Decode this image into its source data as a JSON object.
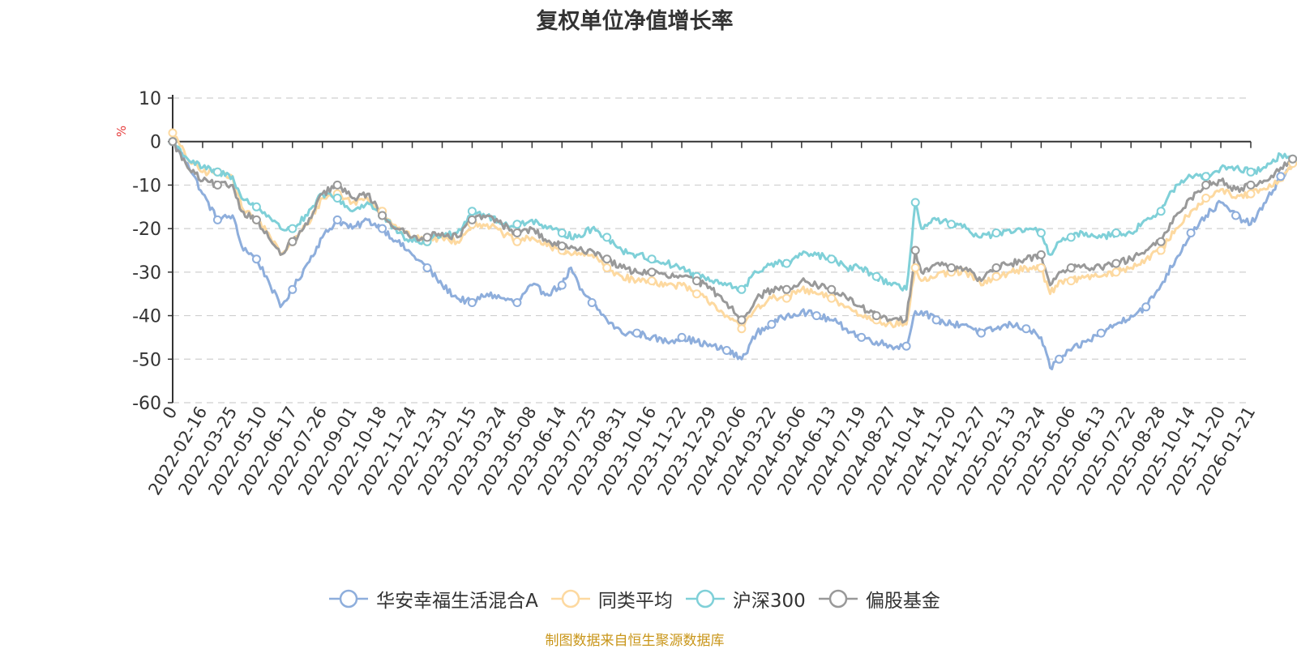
{
  "chart_data": {
    "type": "line",
    "title": "复权单位净值增长率",
    "ylabel": "%",
    "ylim": [
      -60,
      10
    ],
    "yticks": [
      "10",
      "0",
      "-10",
      "-20",
      "-30",
      "-40",
      "-50",
      "-60"
    ],
    "categories": [
      "0",
      "2022-02-16",
      "2022-03-25",
      "2022-05-10",
      "2022-06-17",
      "2022-07-26",
      "2022-09-01",
      "2022-10-18",
      "2022-11-24",
      "2022-12-31",
      "2023-02-15",
      "2023-03-24",
      "2023-05-08",
      "2023-06-14",
      "2023-07-25",
      "2023-08-31",
      "2023-10-16",
      "2023-11-22",
      "2023-12-29",
      "2024-02-06",
      "2024-03-22",
      "2024-05-06",
      "2024-06-13",
      "2024-07-19",
      "2024-08-27",
      "2024-10-14",
      "2024-11-20",
      "2024-12-27",
      "2025-02-13",
      "2025-03-24",
      "2025-05-06",
      "2025-06-13",
      "2025-07-22",
      "2025-08-28",
      "2025-10-14",
      "2025-11-20",
      "2026-01-21"
    ],
    "grid": "dashed horizontal",
    "legend_position": "bottom",
    "series": [
      {
        "name": "华安幸福生活混合A",
        "color": "#8eaedc",
        "anchors": [
          [
            0,
            0
          ],
          [
            0.5,
            -5
          ],
          [
            1,
            -12
          ],
          [
            1.5,
            -18
          ],
          [
            2,
            -17
          ],
          [
            2.3,
            -24
          ],
          [
            2.8,
            -27
          ],
          [
            3.2,
            -32
          ],
          [
            3.6,
            -38
          ],
          [
            4,
            -34
          ],
          [
            4.5,
            -28
          ],
          [
            5,
            -22
          ],
          [
            5.5,
            -18
          ],
          [
            6,
            -20
          ],
          [
            6.5,
            -18
          ],
          [
            7,
            -20
          ],
          [
            7.5,
            -23
          ],
          [
            8,
            -26
          ],
          [
            8.5,
            -29
          ],
          [
            9,
            -33
          ],
          [
            9.5,
            -36
          ],
          [
            10,
            -37
          ],
          [
            10.5,
            -35
          ],
          [
            11,
            -36
          ],
          [
            11.5,
            -37
          ],
          [
            12,
            -33
          ],
          [
            12.5,
            -35
          ],
          [
            13,
            -33
          ],
          [
            13.3,
            -29
          ],
          [
            13.6,
            -34
          ],
          [
            14,
            -37
          ],
          [
            14.5,
            -41
          ],
          [
            15,
            -44
          ],
          [
            15.5,
            -44
          ],
          [
            16,
            -45
          ],
          [
            16.5,
            -46
          ],
          [
            17,
            -45
          ],
          [
            17.5,
            -46
          ],
          [
            18,
            -47
          ],
          [
            18.5,
            -48
          ],
          [
            19,
            -50
          ],
          [
            19.5,
            -44
          ],
          [
            20,
            -42
          ],
          [
            20.5,
            -40
          ],
          [
            21,
            -39
          ],
          [
            21.5,
            -40
          ],
          [
            22,
            -41
          ],
          [
            22.5,
            -43
          ],
          [
            23,
            -45
          ],
          [
            23.5,
            -46
          ],
          [
            24,
            -47
          ],
          [
            24.5,
            -47
          ],
          [
            24.8,
            -39
          ],
          [
            25,
            -39
          ],
          [
            25.5,
            -41
          ],
          [
            26,
            -42
          ],
          [
            26.5,
            -42
          ],
          [
            27,
            -44
          ],
          [
            27.5,
            -43
          ],
          [
            28,
            -42
          ],
          [
            28.5,
            -43
          ],
          [
            29,
            -45
          ],
          [
            29.3,
            -52
          ],
          [
            29.6,
            -50
          ],
          [
            30,
            -48
          ],
          [
            30.5,
            -46
          ],
          [
            31,
            -44
          ],
          [
            31.5,
            -42
          ],
          [
            32,
            -40
          ],
          [
            32.5,
            -38
          ],
          [
            33,
            -33
          ],
          [
            33.5,
            -27
          ],
          [
            34,
            -21
          ],
          [
            34.5,
            -17
          ],
          [
            35,
            -14
          ],
          [
            35.5,
            -17
          ],
          [
            36,
            -19
          ],
          [
            36.5,
            -14
          ],
          [
            37,
            -8
          ],
          [
            37.4,
            -6
          ]
        ]
      },
      {
        "name": "同类平均",
        "color": "#fdd9a0",
        "anchors": [
          [
            0,
            2
          ],
          [
            0.5,
            -4
          ],
          [
            1,
            -7
          ],
          [
            1.5,
            -7
          ],
          [
            2,
            -8
          ],
          [
            2.3,
            -15
          ],
          [
            2.8,
            -18
          ],
          [
            3.2,
            -21
          ],
          [
            3.6,
            -26
          ],
          [
            4,
            -23
          ],
          [
            4.5,
            -19
          ],
          [
            5,
            -13
          ],
          [
            5.5,
            -12
          ],
          [
            6,
            -14
          ],
          [
            6.5,
            -13
          ],
          [
            7,
            -16
          ],
          [
            7.5,
            -20
          ],
          [
            8,
            -22
          ],
          [
            8.5,
            -23
          ],
          [
            9,
            -22
          ],
          [
            9.5,
            -23
          ],
          [
            10,
            -19
          ],
          [
            10.5,
            -19
          ],
          [
            11,
            -21
          ],
          [
            11.5,
            -23
          ],
          [
            12,
            -22
          ],
          [
            12.5,
            -24
          ],
          [
            13,
            -25
          ],
          [
            13.5,
            -26
          ],
          [
            14,
            -26
          ],
          [
            14.5,
            -29
          ],
          [
            15,
            -31
          ],
          [
            15.5,
            -32
          ],
          [
            16,
            -32
          ],
          [
            16.5,
            -33
          ],
          [
            17,
            -33
          ],
          [
            17.5,
            -35
          ],
          [
            18,
            -37
          ],
          [
            18.5,
            -40
          ],
          [
            19,
            -43
          ],
          [
            19.5,
            -38
          ],
          [
            20,
            -36
          ],
          [
            20.5,
            -36
          ],
          [
            21,
            -34
          ],
          [
            21.5,
            -35
          ],
          [
            22,
            -36
          ],
          [
            22.5,
            -38
          ],
          [
            23,
            -40
          ],
          [
            23.5,
            -41
          ],
          [
            24,
            -42
          ],
          [
            24.5,
            -42
          ],
          [
            24.8,
            -29
          ],
          [
            25,
            -32
          ],
          [
            25.5,
            -31
          ],
          [
            26,
            -30
          ],
          [
            26.5,
            -30
          ],
          [
            27,
            -33
          ],
          [
            27.5,
            -31
          ],
          [
            28,
            -30
          ],
          [
            28.5,
            -29
          ],
          [
            29,
            -29
          ],
          [
            29.3,
            -35
          ],
          [
            29.6,
            -32
          ],
          [
            30,
            -32
          ],
          [
            30.5,
            -31
          ],
          [
            31,
            -31
          ],
          [
            31.5,
            -30
          ],
          [
            32,
            -29
          ],
          [
            32.5,
            -27
          ],
          [
            33,
            -25
          ],
          [
            33.5,
            -20
          ],
          [
            34,
            -16
          ],
          [
            34.5,
            -13
          ],
          [
            35,
            -11
          ],
          [
            35.5,
            -13
          ],
          [
            36,
            -12
          ],
          [
            36.5,
            -11
          ],
          [
            37,
            -9
          ],
          [
            37.4,
            -5
          ]
        ]
      },
      {
        "name": "沪深300",
        "color": "#7fd0d8",
        "anchors": [
          [
            0,
            0
          ],
          [
            0.5,
            -4
          ],
          [
            1,
            -6
          ],
          [
            1.5,
            -7
          ],
          [
            2,
            -8
          ],
          [
            2.3,
            -13
          ],
          [
            2.8,
            -15
          ],
          [
            3.2,
            -17
          ],
          [
            3.6,
            -20
          ],
          [
            4,
            -20
          ],
          [
            4.5,
            -17
          ],
          [
            5,
            -12
          ],
          [
            5.5,
            -13
          ],
          [
            6,
            -16
          ],
          [
            6.5,
            -14
          ],
          [
            7,
            -17
          ],
          [
            7.5,
            -21
          ],
          [
            8,
            -23
          ],
          [
            8.5,
            -23
          ],
          [
            9,
            -21
          ],
          [
            9.5,
            -21
          ],
          [
            10,
            -16
          ],
          [
            10.5,
            -17
          ],
          [
            11,
            -19
          ],
          [
            11.5,
            -19
          ],
          [
            12,
            -18
          ],
          [
            12.5,
            -20
          ],
          [
            13,
            -21
          ],
          [
            13.5,
            -22
          ],
          [
            14,
            -20
          ],
          [
            14.5,
            -22
          ],
          [
            15,
            -25
          ],
          [
            15.5,
            -26
          ],
          [
            16,
            -27
          ],
          [
            16.5,
            -28
          ],
          [
            17,
            -29
          ],
          [
            17.5,
            -31
          ],
          [
            18,
            -32
          ],
          [
            18.5,
            -33
          ],
          [
            19,
            -34
          ],
          [
            19.5,
            -30
          ],
          [
            20,
            -28
          ],
          [
            20.5,
            -28
          ],
          [
            21,
            -26
          ],
          [
            21.5,
            -26
          ],
          [
            22,
            -27
          ],
          [
            22.5,
            -29
          ],
          [
            23,
            -29
          ],
          [
            23.5,
            -31
          ],
          [
            24,
            -33
          ],
          [
            24.5,
            -34
          ],
          [
            24.8,
            -14
          ],
          [
            25,
            -20
          ],
          [
            25.5,
            -18
          ],
          [
            26,
            -19
          ],
          [
            26.5,
            -20
          ],
          [
            27,
            -22
          ],
          [
            27.5,
            -21
          ],
          [
            28,
            -21
          ],
          [
            28.5,
            -20
          ],
          [
            29,
            -21
          ],
          [
            29.3,
            -26
          ],
          [
            29.6,
            -23
          ],
          [
            30,
            -22
          ],
          [
            30.5,
            -21
          ],
          [
            31,
            -22
          ],
          [
            31.5,
            -21
          ],
          [
            32,
            -21
          ],
          [
            32.5,
            -18
          ],
          [
            33,
            -16
          ],
          [
            33.5,
            -10
          ],
          [
            34,
            -8
          ],
          [
            34.5,
            -8
          ],
          [
            35,
            -6
          ],
          [
            35.5,
            -6
          ],
          [
            36,
            -7
          ],
          [
            36.5,
            -6
          ],
          [
            37,
            -3
          ],
          [
            37.4,
            -4
          ]
        ]
      },
      {
        "name": "偏股基金",
        "color": "#999999",
        "anchors": [
          [
            0,
            0
          ],
          [
            0.5,
            -6
          ],
          [
            1,
            -9
          ],
          [
            1.5,
            -10
          ],
          [
            2,
            -10
          ],
          [
            2.3,
            -16
          ],
          [
            2.8,
            -18
          ],
          [
            3.2,
            -22
          ],
          [
            3.6,
            -26
          ],
          [
            4,
            -23
          ],
          [
            4.5,
            -19
          ],
          [
            5,
            -12
          ],
          [
            5.5,
            -10
          ],
          [
            6,
            -13
          ],
          [
            6.5,
            -12
          ],
          [
            7,
            -17
          ],
          [
            7.5,
            -20
          ],
          [
            8,
            -22
          ],
          [
            8.5,
            -22
          ],
          [
            9,
            -21
          ],
          [
            9.5,
            -22
          ],
          [
            10,
            -18
          ],
          [
            10.5,
            -17
          ],
          [
            11,
            -19
          ],
          [
            11.5,
            -21
          ],
          [
            12,
            -20
          ],
          [
            12.5,
            -23
          ],
          [
            13,
            -24
          ],
          [
            13.5,
            -25
          ],
          [
            14,
            -25
          ],
          [
            14.5,
            -27
          ],
          [
            15,
            -29
          ],
          [
            15.5,
            -30
          ],
          [
            16,
            -30
          ],
          [
            16.5,
            -31
          ],
          [
            17,
            -31
          ],
          [
            17.5,
            -32
          ],
          [
            18,
            -34
          ],
          [
            18.5,
            -37
          ],
          [
            19,
            -41
          ],
          [
            19.5,
            -36
          ],
          [
            20,
            -34
          ],
          [
            20.5,
            -34
          ],
          [
            21,
            -32
          ],
          [
            21.5,
            -33
          ],
          [
            22,
            -34
          ],
          [
            22.5,
            -36
          ],
          [
            23,
            -38
          ],
          [
            23.5,
            -40
          ],
          [
            24,
            -41
          ],
          [
            24.5,
            -41
          ],
          [
            24.8,
            -25
          ],
          [
            25,
            -30
          ],
          [
            25.5,
            -28
          ],
          [
            26,
            -29
          ],
          [
            26.5,
            -29
          ],
          [
            27,
            -32
          ],
          [
            27.5,
            -29
          ],
          [
            28,
            -28
          ],
          [
            28.5,
            -27
          ],
          [
            29,
            -26
          ],
          [
            29.3,
            -33
          ],
          [
            29.6,
            -30
          ],
          [
            30,
            -29
          ],
          [
            30.5,
            -29
          ],
          [
            31,
            -29
          ],
          [
            31.5,
            -28
          ],
          [
            32,
            -27
          ],
          [
            32.5,
            -25
          ],
          [
            33,
            -23
          ],
          [
            33.5,
            -17
          ],
          [
            34,
            -13
          ],
          [
            34.5,
            -10
          ],
          [
            35,
            -9
          ],
          [
            35.5,
            -11
          ],
          [
            36,
            -10
          ],
          [
            36.5,
            -9
          ],
          [
            37,
            -6
          ],
          [
            37.4,
            -4
          ]
        ]
      }
    ]
  },
  "source": "制图数据来自恒生聚源数据库"
}
